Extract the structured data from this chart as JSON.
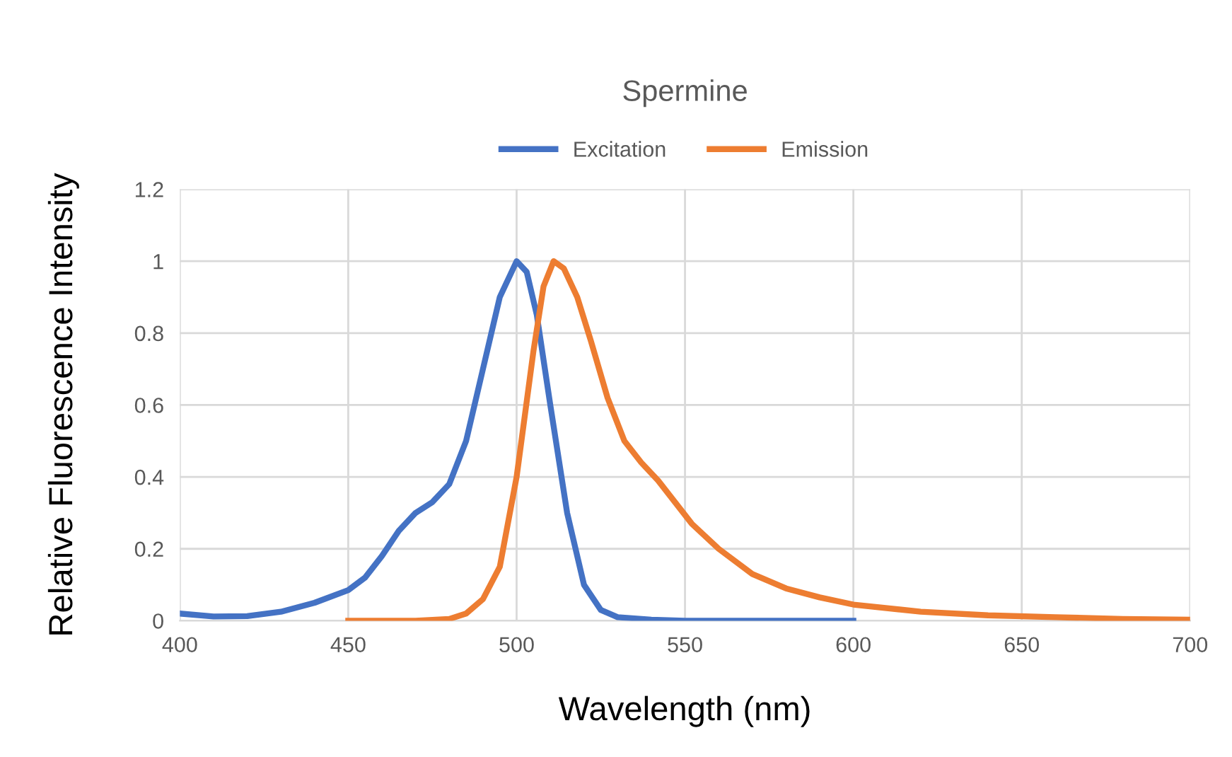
{
  "chart_data": {
    "type": "line",
    "title": "Spermine",
    "xlabel": "Wavelength (nm)",
    "ylabel": "Relative Fluorescence Intensity",
    "xlim": [
      400,
      700
    ],
    "xticks": [
      400,
      450,
      500,
      550,
      600,
      650,
      700
    ],
    "ylim": [
      0,
      1.2
    ],
    "yticks": [
      0,
      0.2,
      0.4,
      0.6,
      0.8,
      1,
      1.2
    ],
    "grid": true,
    "legend": "top",
    "marker": "none",
    "line_style": "solid",
    "series": [
      {
        "name": "Excitation",
        "color": "#4472c4",
        "x": [
          400,
          410,
          420,
          430,
          440,
          450,
          455,
          460,
          465,
          470,
          475,
          480,
          485,
          490,
          495,
          500,
          503,
          506,
          510,
          515,
          520,
          525,
          530,
          540,
          550,
          600
        ],
        "values": [
          0.02,
          0.012,
          0.013,
          0.025,
          0.05,
          0.085,
          0.12,
          0.18,
          0.25,
          0.3,
          0.33,
          0.38,
          0.5,
          0.7,
          0.9,
          1.0,
          0.97,
          0.85,
          0.6,
          0.3,
          0.1,
          0.03,
          0.01,
          0.003,
          0,
          0
        ]
      },
      {
        "name": "Emission",
        "color": "#ed7d31",
        "x": [
          450,
          470,
          480,
          485,
          490,
          495,
          500,
          505,
          508,
          511,
          514,
          518,
          522,
          527,
          532,
          537,
          542,
          547,
          552,
          560,
          570,
          580,
          590,
          600,
          620,
          640,
          660,
          680,
          700
        ],
        "values": [
          0,
          0,
          0.005,
          0.02,
          0.06,
          0.15,
          0.4,
          0.75,
          0.93,
          1.0,
          0.98,
          0.9,
          0.78,
          0.62,
          0.5,
          0.44,
          0.39,
          0.33,
          0.27,
          0.2,
          0.13,
          0.09,
          0.065,
          0.045,
          0.025,
          0.015,
          0.01,
          0.005,
          0.003
        ]
      }
    ]
  }
}
